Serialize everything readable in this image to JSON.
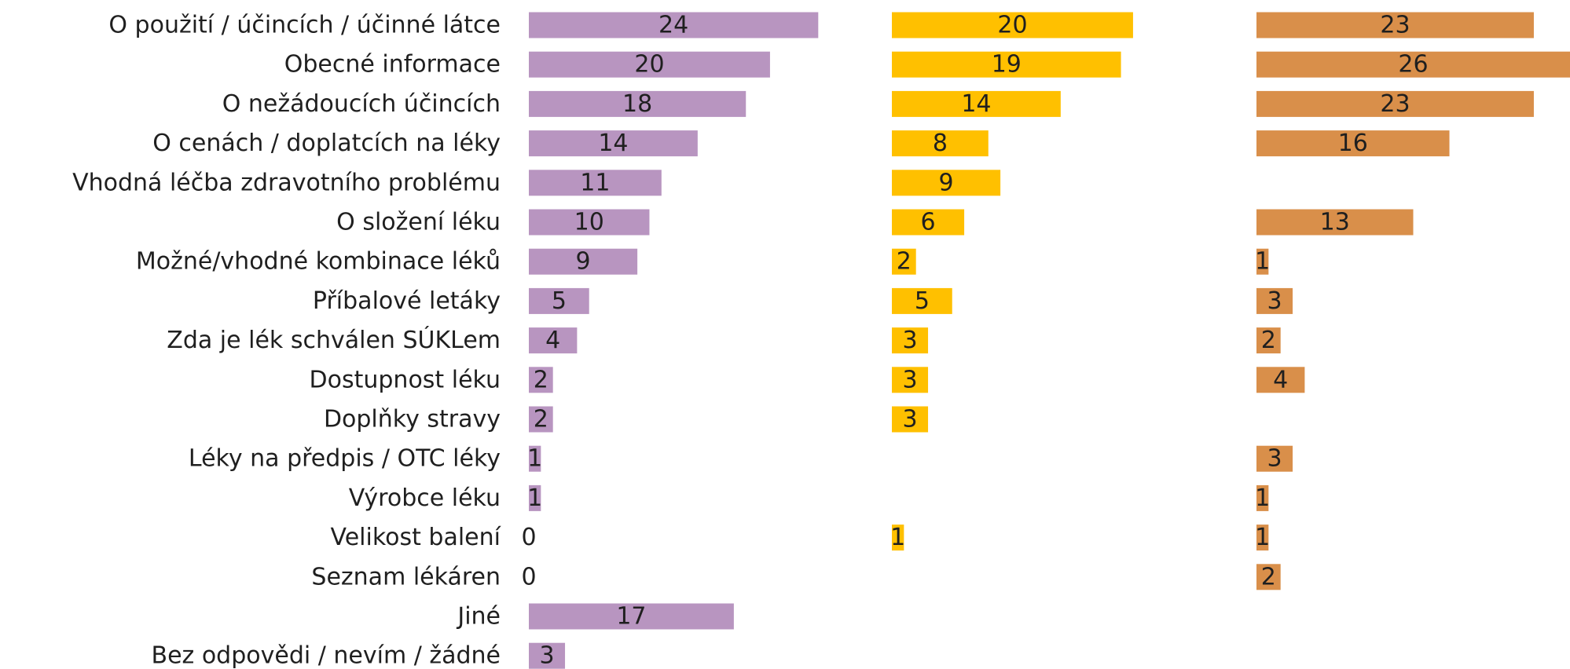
{
  "chart_data": {
    "type": "bar",
    "orientation": "horizontal",
    "categories": [
      "O použití / účincích / účinné látce",
      "Obecné informace",
      "O nežádoucích účincích",
      "O cenách / doplatcích na léky",
      "Vhodná léčba zdravotního problému",
      "O složení léku",
      "Možné/vhodné kombinace léků",
      "Příbalové letáky",
      "Zda je lék schválen SÚKLem",
      "Dostupnost léku",
      "Doplňky stravy",
      "Léky na předpis / OTC léky",
      "Výrobce léku",
      "Velikost balení",
      "Seznam lékáren",
      "Jiné",
      "Bez odpovědi / nevím / žádné"
    ],
    "series": [
      {
        "color": "#b895c0",
        "values": [
          24,
          20,
          18,
          14,
          11,
          10,
          9,
          5,
          4,
          2,
          2,
          1,
          1,
          0,
          0,
          17,
          3
        ]
      },
      {
        "color": "#ffc000",
        "values": [
          20,
          19,
          14,
          8,
          9,
          6,
          2,
          5,
          3,
          3,
          3,
          null,
          null,
          1,
          null,
          null,
          null
        ]
      },
      {
        "color": "#d98f4a",
        "values": [
          23,
          26,
          23,
          16,
          null,
          13,
          1,
          3,
          2,
          4,
          null,
          3,
          1,
          1,
          2,
          null,
          null
        ]
      }
    ],
    "xlim": [
      0,
      26
    ]
  }
}
